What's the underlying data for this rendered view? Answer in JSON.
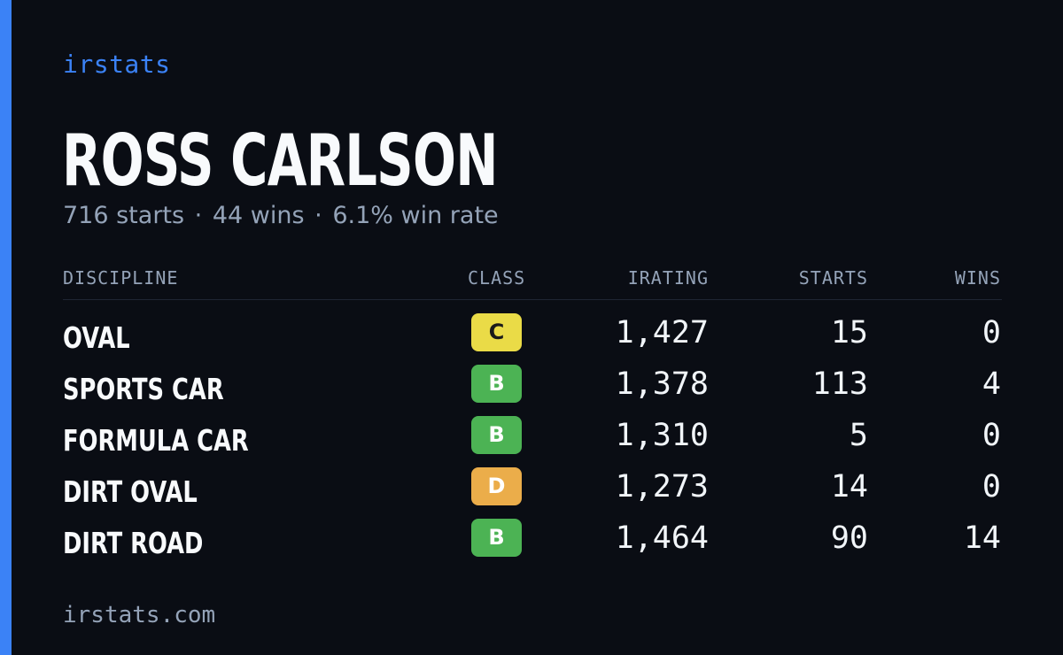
{
  "brand": "irstats",
  "driver": {
    "name": "ROSS CARLSON",
    "summary": {
      "starts": "716 starts",
      "wins": "44 wins",
      "win_rate": "6.1% win rate",
      "separator": "·"
    }
  },
  "table": {
    "headers": {
      "discipline": "DISCIPLINE",
      "class": "CLASS",
      "irating": "IRATING",
      "starts": "STARTS",
      "wins": "WINS"
    },
    "rows": [
      {
        "discipline": "OVAL",
        "class": "C",
        "class_color": "#eadb47",
        "irating": "1,427",
        "starts": "15",
        "wins": "0"
      },
      {
        "discipline": "SPORTS CAR",
        "class": "B",
        "class_color": "#4cb354",
        "irating": "1,378",
        "starts": "113",
        "wins": "4"
      },
      {
        "discipline": "FORMULA CAR",
        "class": "B",
        "class_color": "#4cb354",
        "irating": "1,310",
        "starts": "5",
        "wins": "0"
      },
      {
        "discipline": "DIRT OVAL",
        "class": "D",
        "class_color": "#ebad4a",
        "irating": "1,273",
        "starts": "14",
        "wins": "0"
      },
      {
        "discipline": "DIRT ROAD",
        "class": "B",
        "class_color": "#4cb354",
        "irating": "1,464",
        "starts": "90",
        "wins": "14"
      }
    ]
  },
  "footer": "irstats.com",
  "colors": {
    "background": "#0a0d14",
    "accent": "#3b82f6",
    "muted": "#94a3b8",
    "text": "#f8fafc"
  }
}
